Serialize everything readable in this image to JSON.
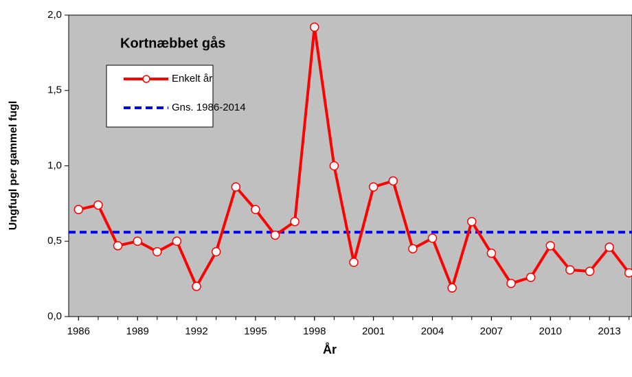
{
  "chart_data": {
    "type": "line",
    "title": "Kortnæbbet gås",
    "xlabel": "År",
    "ylabel": "Ungfugl per gammel fugl",
    "x": [
      1986,
      1987,
      1988,
      1989,
      1990,
      1991,
      1992,
      1993,
      1994,
      1995,
      1996,
      1997,
      1998,
      1999,
      2000,
      2001,
      2002,
      2003,
      2004,
      2005,
      2006,
      2007,
      2008,
      2009,
      2010,
      2011,
      2012,
      2013,
      2014
    ],
    "series": [
      {
        "name": "Enkelt år",
        "color": "#ff0000",
        "values": [
          0.71,
          0.74,
          0.47,
          0.5,
          0.43,
          0.5,
          0.2,
          0.43,
          0.86,
          0.71,
          0.54,
          0.63,
          1.92,
          1.0,
          0.36,
          0.86,
          0.9,
          0.45,
          0.52,
          0.19,
          0.63,
          0.42,
          0.22,
          0.26,
          0.47,
          0.31,
          0.3,
          0.46,
          0.29
        ]
      }
    ],
    "mean": {
      "name": "Gns. 1986-2014",
      "color": "#0000ff",
      "value": 0.56
    },
    "xlim": [
      1985.5,
      2014.15
    ],
    "xticks": [
      1986,
      1989,
      1992,
      1995,
      1998,
      2001,
      2004,
      2007,
      2010,
      2013
    ],
    "ylim": [
      0,
      2
    ],
    "yticks": [
      {
        "value": 0,
        "label": "0,0"
      },
      {
        "value": 0.5,
        "label": "0,5"
      },
      {
        "value": 1,
        "label": "1,0"
      },
      {
        "value": 1.5,
        "label": "1,5"
      },
      {
        "value": 2,
        "label": "2,0"
      }
    ],
    "plot_background": "#c0c0c0"
  }
}
